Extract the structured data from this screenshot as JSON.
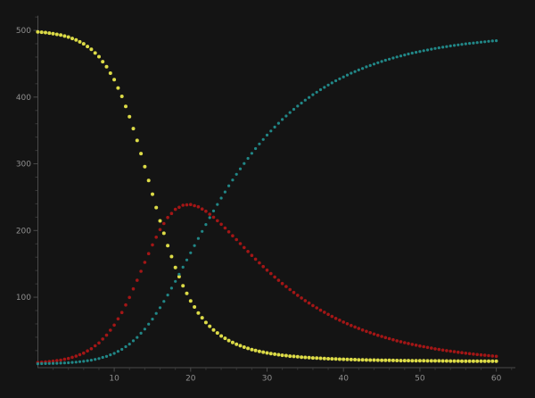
{
  "figure": {
    "background": "#141414",
    "axis_line_color": "#4a4a4a",
    "major_tick_color": "#4a4a4a",
    "minor_tick_color": "#383838",
    "tick_label_color": "#8f8f8f"
  },
  "chart_data": {
    "type": "scatter",
    "title": "",
    "xlabel": "",
    "ylabel": "",
    "legend": false,
    "grid": false,
    "xlim": [
      0,
      63
    ],
    "ylim": [
      0,
      522
    ],
    "x_ticks": [
      10,
      20,
      30,
      40,
      50,
      60
    ],
    "y_ticks": [
      100,
      200,
      300,
      400,
      500
    ],
    "minor_x_step": 2,
    "minor_y_step": 20,
    "x_start": 0,
    "x_step": 0.5,
    "series": [
      {
        "name": "yellow-series",
        "color": "#dcdb47",
        "dot_radius": 2.0,
        "values": [
          497.7,
          497.2,
          496.7,
          495.9,
          495.1,
          494.1,
          493.0,
          491.5,
          490.0,
          487.9,
          485.8,
          482.8,
          479.9,
          475.8,
          471.7,
          466.1,
          460.6,
          453.1,
          445.6,
          435.8,
          426.1,
          413.6,
          401.1,
          385.9,
          370.6,
          352.8,
          335.0,
          315.3,
          295.6,
          275.1,
          254.5,
          234.4,
          214.4,
          195.8,
          177.2,
          160.9,
          144.6,
          130.8,
          117.0,
          105.7,
          94.5,
          85.4,
          76.4,
          69.2,
          62.1,
          56.4,
          50.8,
          46.4,
          41.9,
          38.4,
          35.0,
          32.2,
          29.5,
          27.3,
          25.1,
          23.3,
          21.6,
          20.2,
          18.7,
          17.6,
          16.5,
          15.5,
          14.6,
          13.8,
          13.0,
          12.4,
          11.7,
          11.2,
          10.7,
          10.2,
          9.8,
          9.4,
          9.0,
          8.7,
          8.4,
          8.1,
          7.8,
          7.6,
          7.3,
          7.1,
          6.9,
          6.7,
          6.5,
          6.4,
          6.2,
          6.1,
          5.9,
          5.8,
          5.7,
          5.6,
          5.5,
          5.4,
          5.3,
          5.2,
          5.1,
          5.0,
          5.0,
          4.9,
          4.8,
          4.8,
          4.7,
          4.7,
          4.6,
          4.6,
          4.5,
          4.5,
          4.4,
          4.4,
          4.3,
          4.3,
          4.3,
          4.2,
          4.2,
          4.2,
          4.1,
          4.1,
          4.1,
          4.1,
          4.0,
          4.0,
          4.0
        ]
      },
      {
        "name": "red-series",
        "color": "#a31616",
        "dot_radius": 1.8,
        "values": [
          2.0,
          2.5,
          2.9,
          3.5,
          4.1,
          4.9,
          5.8,
          7.0,
          8.2,
          9.9,
          11.6,
          13.9,
          16.2,
          19.5,
          22.7,
          27.1,
          31.4,
          37.3,
          43.1,
          50.6,
          58.2,
          67.6,
          77.1,
          88.4,
          99.7,
          112.5,
          125.3,
          138.8,
          152.2,
          165.3,
          178.4,
          189.9,
          201.4,
          210.4,
          219.5,
          225.6,
          231.7,
          234.8,
          237.9,
          238.4,
          238.9,
          237.2,
          235.6,
          232.2,
          228.9,
          224.4,
          219.9,
          214.7,
          209.4,
          203.7,
          198.0,
          192.1,
          186.3,
          180.3,
          174.4,
          168.6,
          162.7,
          157.1,
          151.4,
          146.0,
          140.6,
          135.4,
          130.3,
          125.4,
          120.6,
          116.0,
          111.4,
          107.1,
          102.9,
          98.9,
          94.9,
          91.2,
          87.5,
          84.0,
          80.6,
          77.4,
          74.2,
          71.2,
          68.2,
          65.5,
          62.8,
          60.2,
          57.7,
          55.4,
          53.1,
          50.9,
          48.8,
          46.8,
          44.8,
          43.0,
          41.2,
          39.5,
          37.8,
          36.3,
          34.7,
          33.3,
          31.9,
          30.6,
          29.3,
          28.1,
          26.9,
          25.8,
          24.7,
          23.7,
          22.6,
          21.7,
          20.8,
          19.9,
          19.1,
          18.3,
          17.5,
          16.8,
          16.1,
          15.4,
          14.7,
          14.1,
          13.5,
          13.0,
          12.4,
          11.9,
          11.4
        ]
      },
      {
        "name": "teal-series",
        "color": "#218787",
        "dot_radius": 1.6,
        "values": [
          0.3,
          0.4,
          0.5,
          0.7,
          0.8,
          1.0,
          1.2,
          1.5,
          1.8,
          2.3,
          2.7,
          3.3,
          3.9,
          4.8,
          5.6,
          6.8,
          8.0,
          9.7,
          11.3,
          13.6,
          15.8,
          18.8,
          21.8,
          25.8,
          29.7,
          34.7,
          39.7,
          46.0,
          52.2,
          59.7,
          67.1,
          75.7,
          84.3,
          93.8,
          103.3,
          113.6,
          123.8,
          134.4,
          145.0,
          155.8,
          166.6,
          177.4,
          188.1,
          198.6,
          209.0,
          219.2,
          229.3,
          239.0,
          248.6,
          257.8,
          267.0,
          275.7,
          284.3,
          292.4,
          300.5,
          308.1,
          315.7,
          322.8,
          329.8,
          336.4,
          343.0,
          349.1,
          355.1,
          360.8,
          366.4,
          371.7,
          376.9,
          381.7,
          386.5,
          391.0,
          395.4,
          399.5,
          403.6,
          407.4,
          411.1,
          414.6,
          418.1,
          421.3,
          424.5,
          427.4,
          430.3,
          433.1,
          435.8,
          438.3,
          440.7,
          443.0,
          445.3,
          447.4,
          449.5,
          451.5,
          453.4,
          455.2,
          456.9,
          458.6,
          460.2,
          461.7,
          463.2,
          464.6,
          465.9,
          467.2,
          468.4,
          469.6,
          470.7,
          471.8,
          472.9,
          473.9,
          474.8,
          475.7,
          476.6,
          477.4,
          478.2,
          479.0,
          479.8,
          480.5,
          481.1,
          481.8,
          482.4,
          483.0,
          483.6,
          484.1,
          484.6
        ]
      }
    ]
  }
}
